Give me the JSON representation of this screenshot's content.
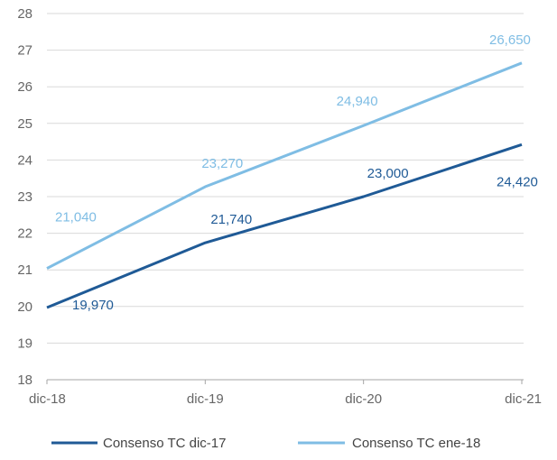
{
  "chart_data": {
    "type": "line",
    "categories": [
      "dic-18",
      "dic-19",
      "dic-20",
      "dic-21"
    ],
    "ylim": [
      18,
      28
    ],
    "yticks": [
      18,
      19,
      20,
      21,
      22,
      23,
      24,
      25,
      26,
      27,
      28
    ],
    "grid": true,
    "legend_position": "bottom",
    "series": [
      {
        "name": "Consenso TC dic-17",
        "color": "#1f5a96",
        "values": [
          19.97,
          21.74,
          23.0,
          24.42
        ],
        "labels": [
          "19,970",
          "21,740",
          "23,000",
          "24,420"
        ]
      },
      {
        "name": "Consenso TC ene-18",
        "color": "#7fbde4",
        "values": [
          21.04,
          23.27,
          24.94,
          26.65
        ],
        "labels": [
          "21,040",
          "23,270",
          "24,940",
          "26,650"
        ]
      }
    ]
  }
}
